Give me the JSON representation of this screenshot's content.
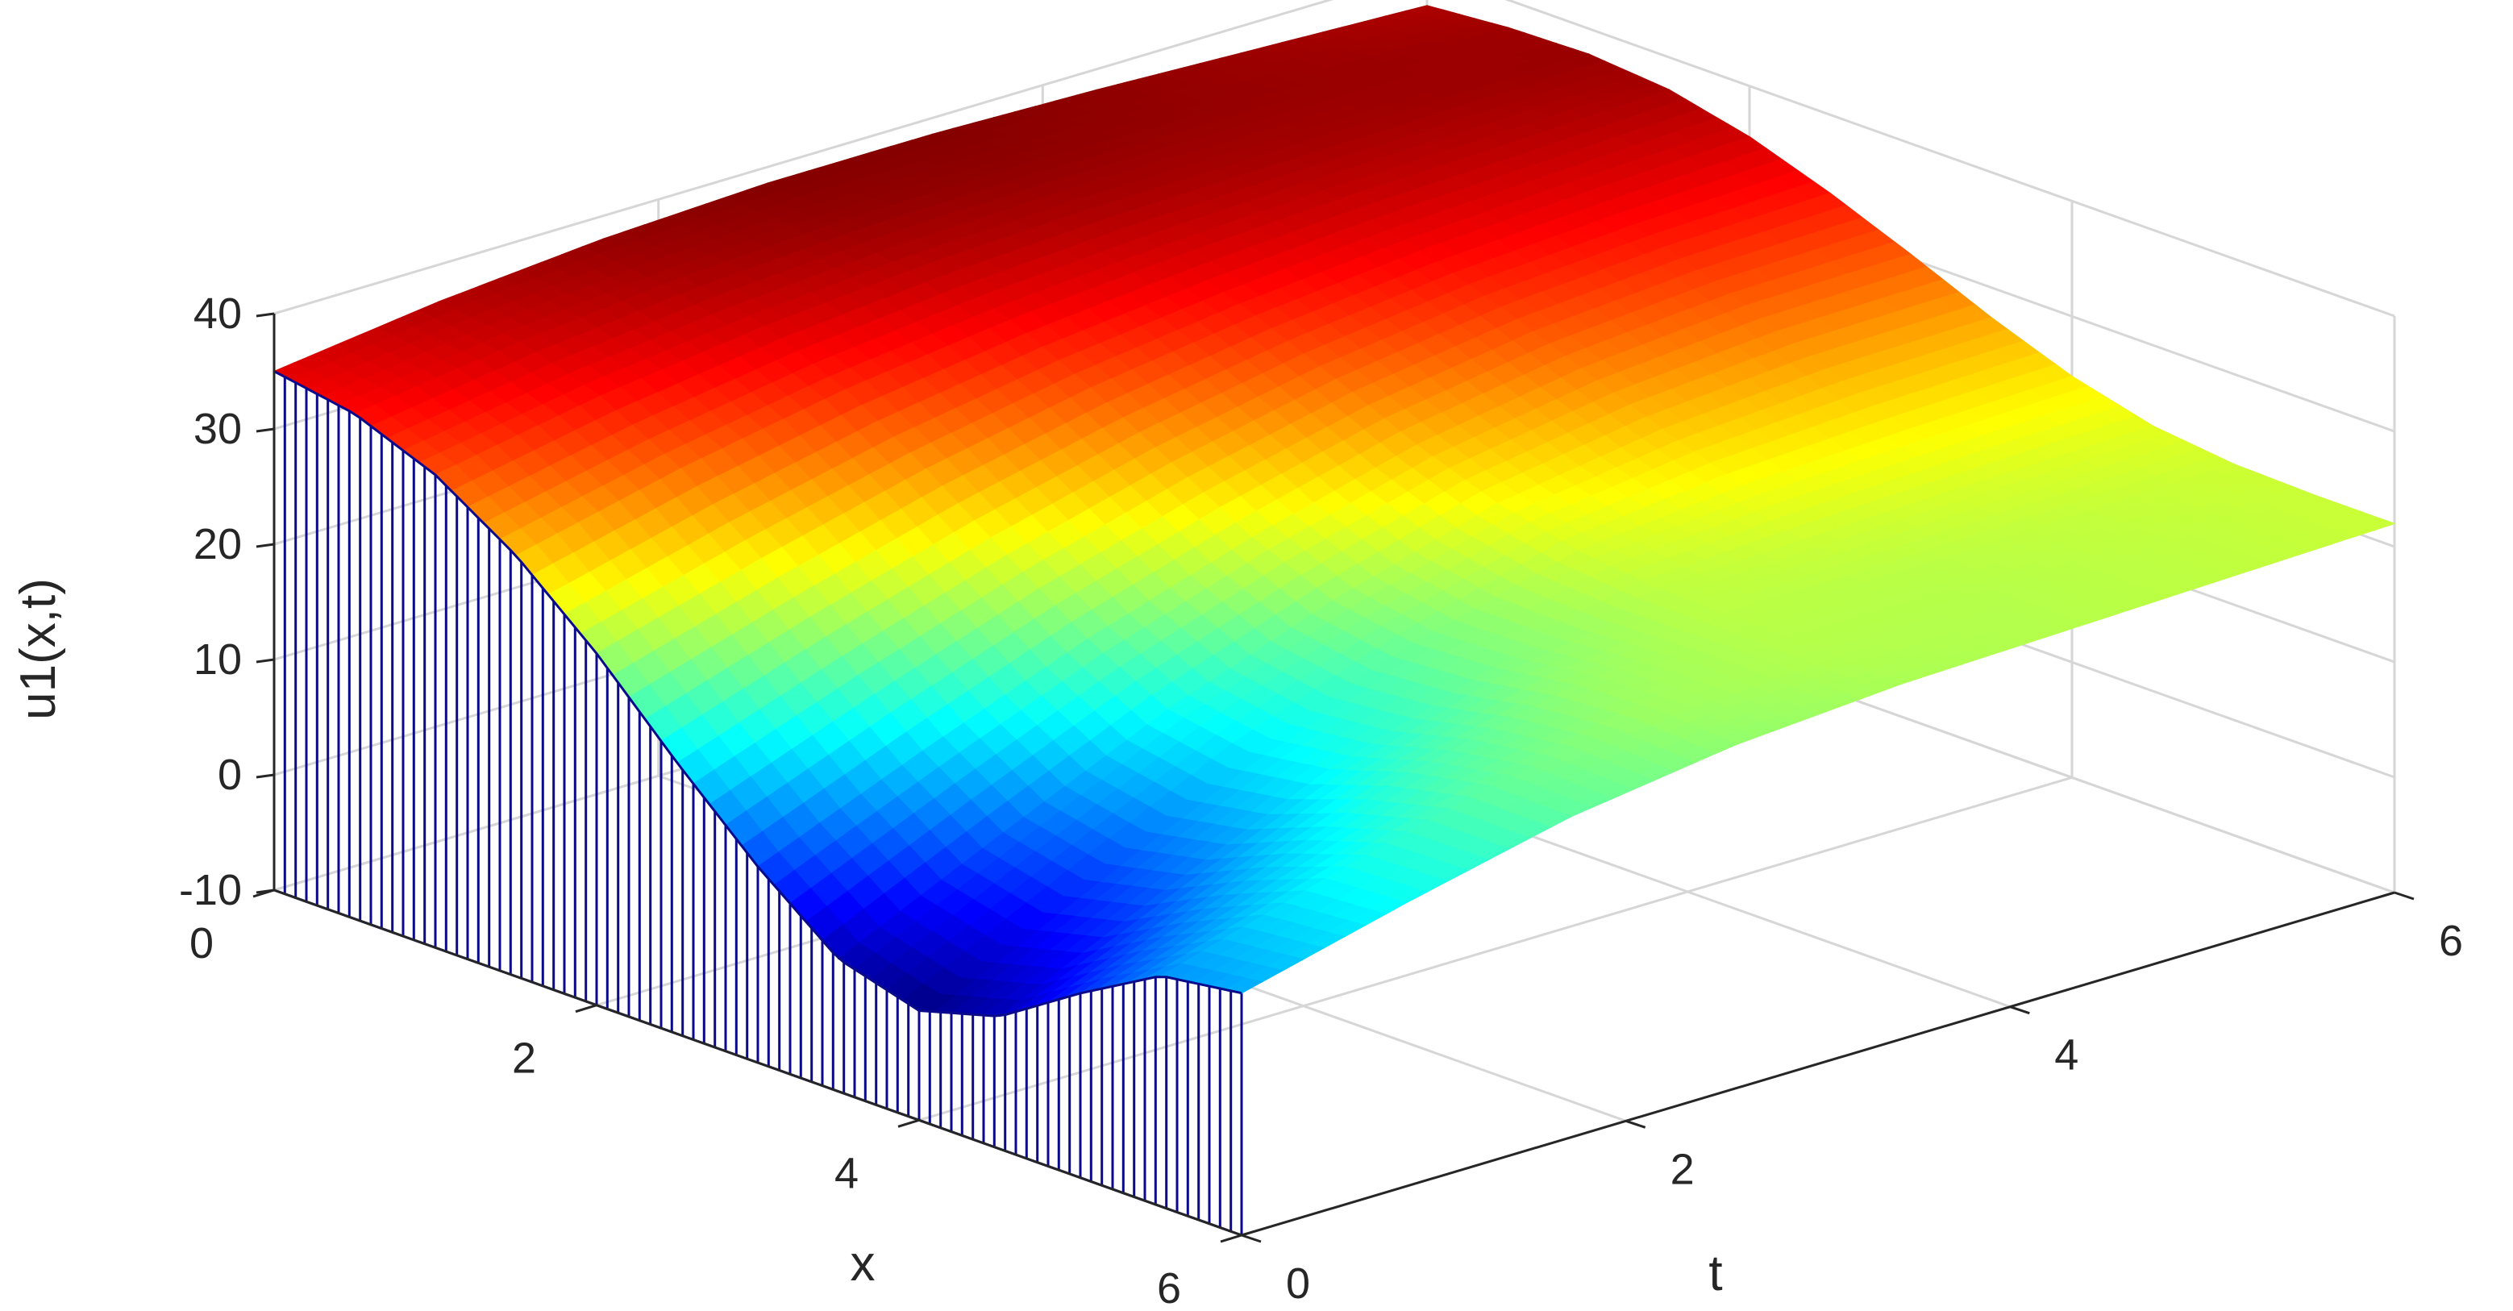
{
  "chart_data": {
    "type": "surface",
    "title": "",
    "xlabel": "x",
    "ylabel": "t",
    "zlabel": "u1(x,t)",
    "xlim": [
      0,
      6
    ],
    "ylim": [
      0,
      6
    ],
    "zlim": [
      -10,
      40
    ],
    "xticks": [
      "0",
      "2",
      "4",
      "6"
    ],
    "yticks": [
      "0",
      "2",
      "4",
      "6"
    ],
    "zticks": [
      "-10",
      "0",
      "10",
      "20",
      "30",
      "40"
    ],
    "x_tick_values": [
      0,
      2,
      4,
      6
    ],
    "y_tick_values": [
      0,
      2,
      4,
      6
    ],
    "z_tick_values": [
      -10,
      0,
      10,
      20,
      30,
      40
    ],
    "grid": true,
    "colormap": "jet",
    "x": [
      0,
      0.5,
      1,
      1.5,
      2,
      2.5,
      3,
      3.5,
      4,
      4.5,
      5,
      5.5,
      6
    ],
    "t": [
      0,
      0.5,
      1,
      1.5,
      2,
      2.5,
      3,
      3.5,
      4,
      4.5,
      5,
      5.5,
      6
    ],
    "z": [
      [
        35,
        33.8,
        31,
        26.5,
        20.5,
        13.5,
        7,
        1.5,
        -0.5,
        1.5,
        6,
        10,
        11
      ],
      [
        36.8,
        35.8,
        33.6,
        29.8,
        24.5,
        18.5,
        12.8,
        8.2,
        6.6,
        8.2,
        11.5,
        14.2,
        14.6
      ],
      [
        38,
        37.2,
        35.4,
        32.4,
        28,
        23,
        18.2,
        14.6,
        13.4,
        14.4,
        16.6,
        18,
        17.8
      ],
      [
        38.6,
        38,
        36.6,
        34.2,
        30.8,
        26.8,
        22.8,
        19.8,
        18.6,
        19,
        20,
        20.4,
        19.8
      ],
      [
        38.6,
        38.2,
        37.2,
        35.4,
        32.8,
        29.8,
        26.6,
        24,
        22.4,
        21.6,
        21.4,
        21.2,
        20.8
      ],
      [
        38.2,
        38,
        37.4,
        36.2,
        34.2,
        31.8,
        29,
        26.2,
        23.8,
        22.2,
        21.4,
        21.2,
        21.2
      ],
      [
        37.6,
        37.8,
        37.6,
        36.6,
        35,
        32.8,
        30.2,
        27.2,
        24.4,
        22.6,
        21.8,
        21.6,
        21.6
      ],
      [
        37,
        37.6,
        37.8,
        37.2,
        35.6,
        33.2,
        30.4,
        27.4,
        24.8,
        23,
        22.2,
        22,
        22
      ]
    ],
    "z_rows_t": [
      0,
      0.86,
      1.71,
      2.57,
      3.43,
      4.29,
      5.14,
      6
    ],
    "stems_at": "t = 0 face"
  }
}
